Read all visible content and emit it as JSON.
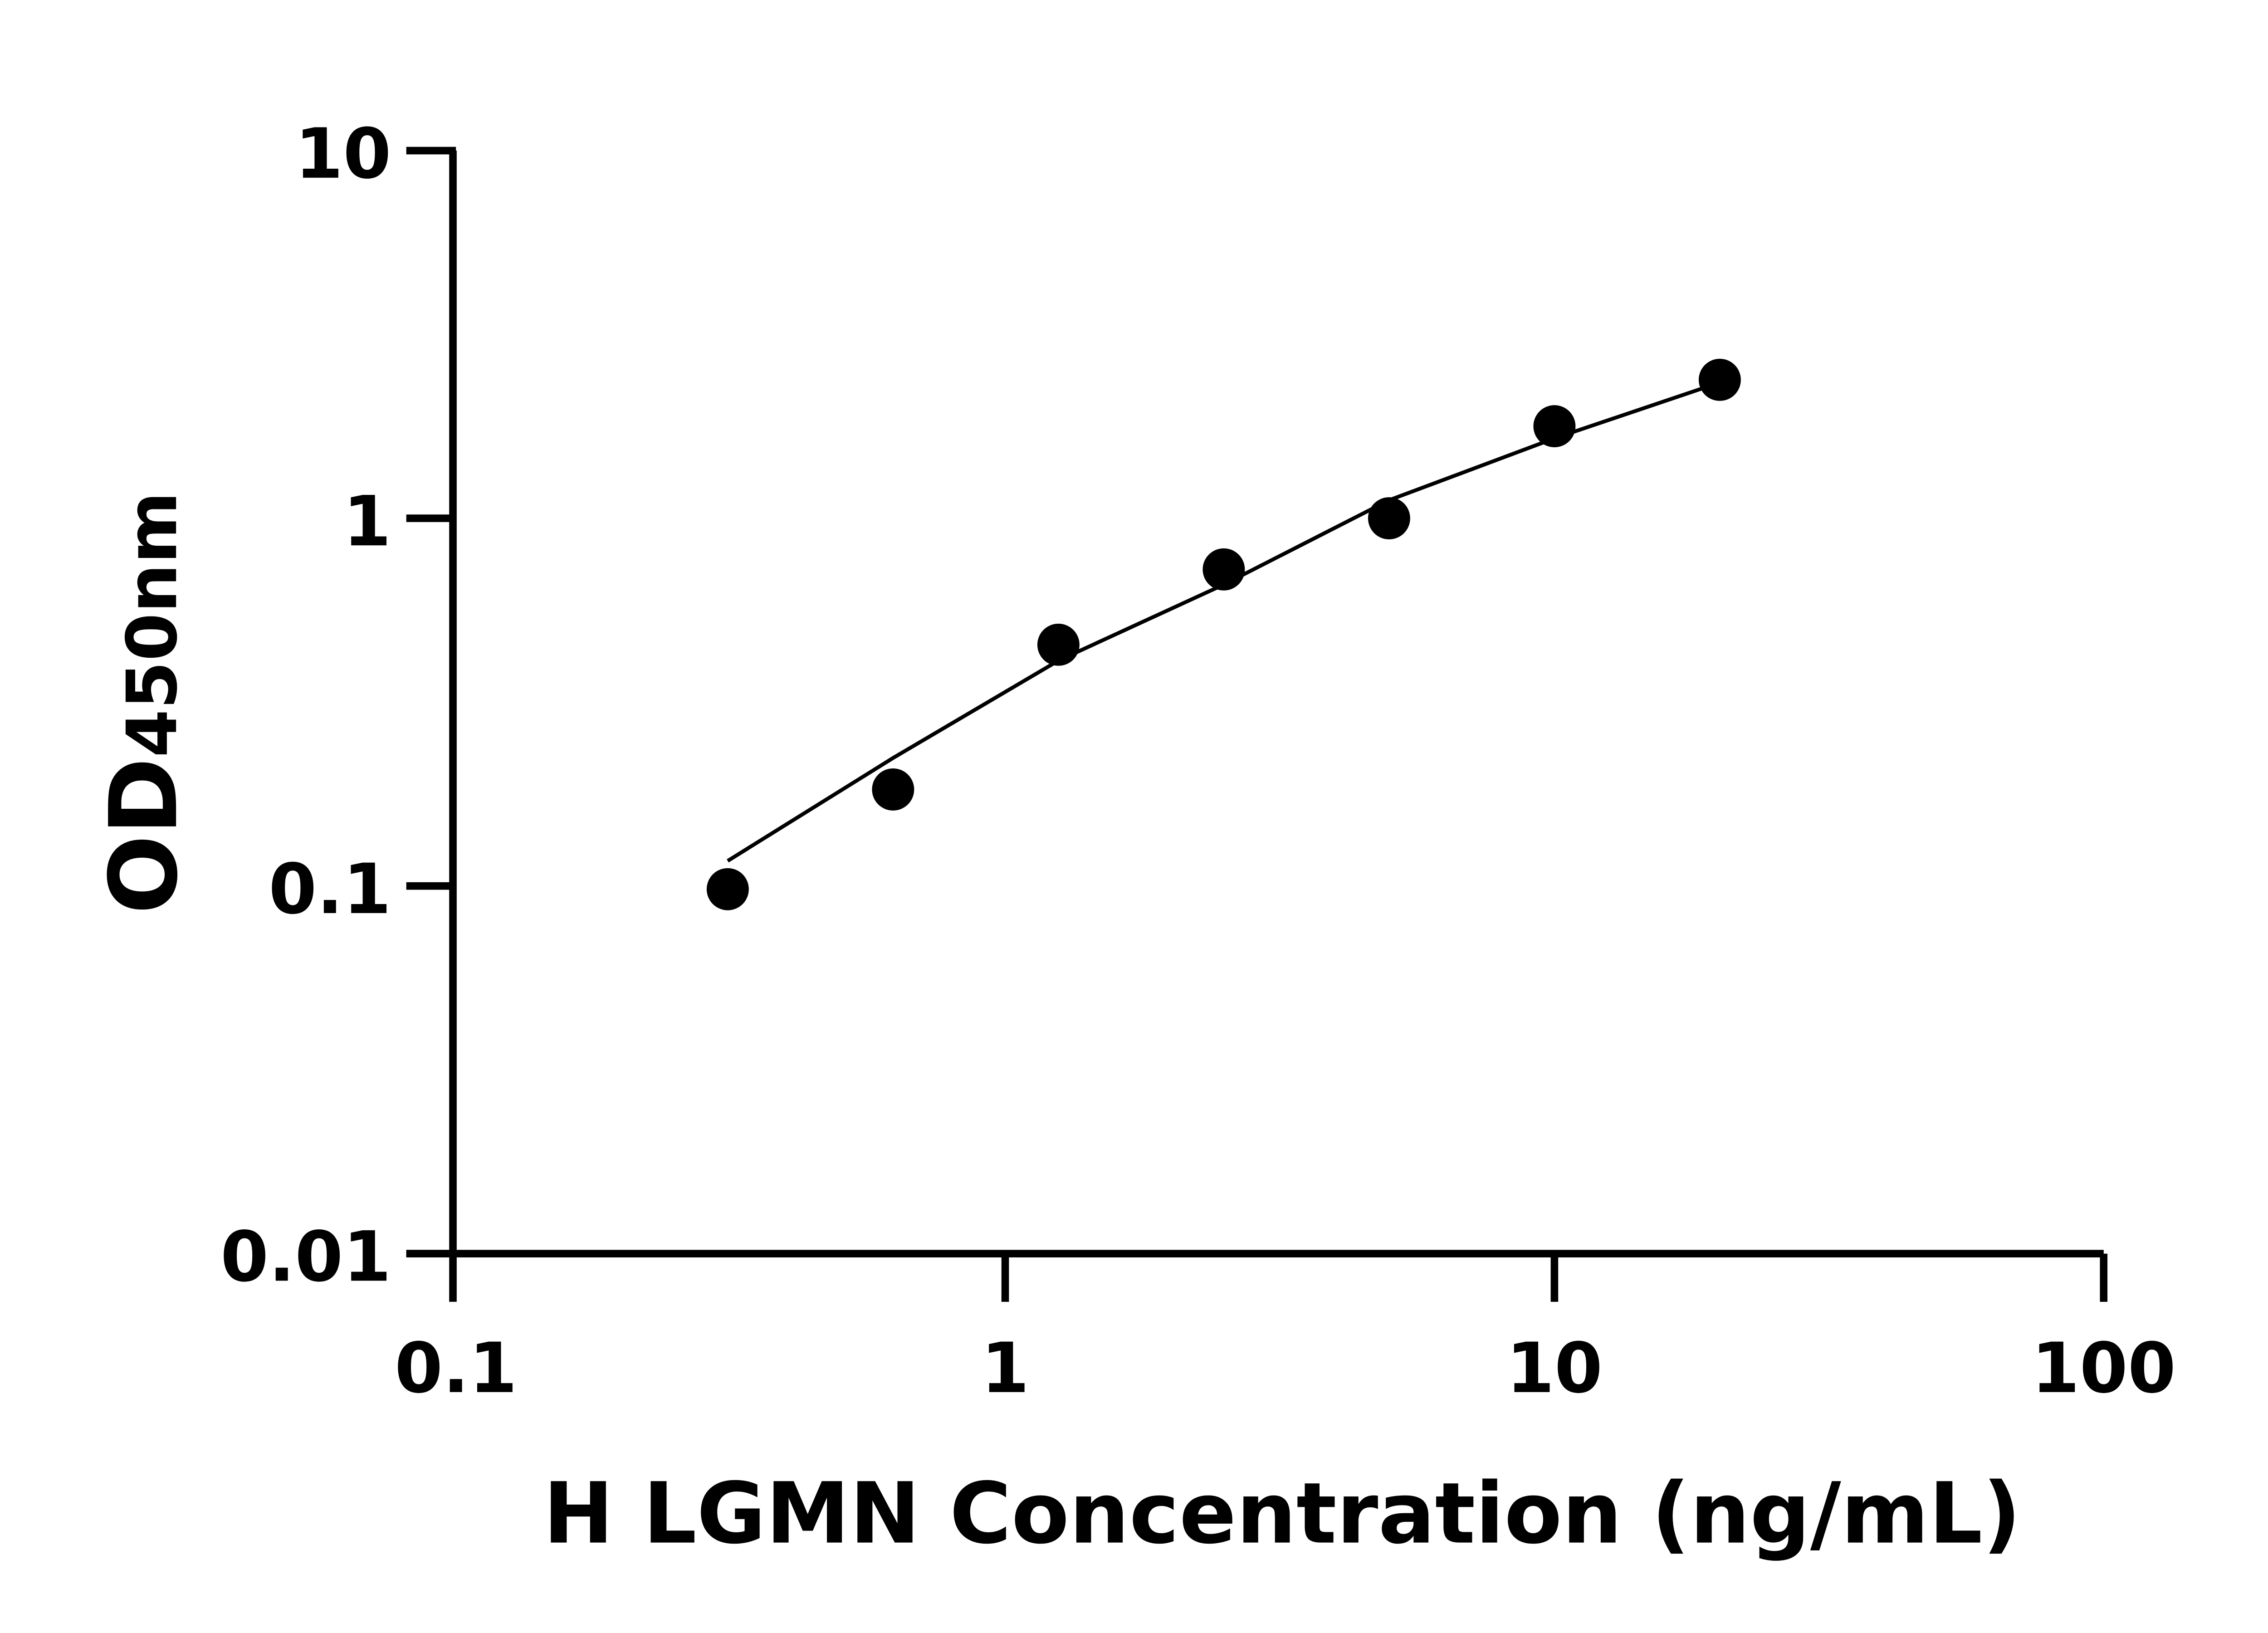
{
  "chart_data": {
    "type": "scatter",
    "title": "",
    "xlabel": "H LGMN Concentration (ng/mL)",
    "ylabel_main": "OD",
    "ylabel_sub": "450nm",
    "xscale": "log",
    "yscale": "log",
    "xlim": [
      0.1,
      100
    ],
    "ylim": [
      0.01,
      10
    ],
    "xticks": [
      "0.1",
      "1",
      "10",
      "100"
    ],
    "yticks": [
      "0.01",
      "0.1",
      "1",
      "10"
    ],
    "grid": false,
    "legend": "none",
    "points": {
      "x": [
        0.3125,
        0.625,
        1.25,
        2.5,
        5,
        10,
        20
      ],
      "y": [
        0.098,
        0.183,
        0.453,
        0.726,
        1.0,
        1.78,
        2.38
      ]
    },
    "fit_curve": {
      "x": [
        0.3125,
        0.625,
        1.25,
        2.5,
        5,
        10,
        20
      ],
      "y": [
        0.117,
        0.223,
        0.41,
        0.66,
        1.12,
        1.65,
        2.34
      ]
    },
    "color": "#000000"
  }
}
